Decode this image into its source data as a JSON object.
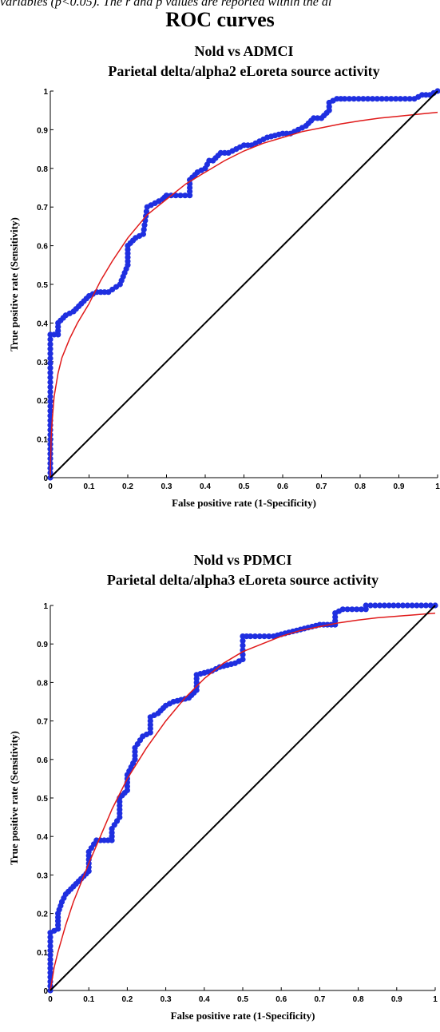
{
  "caption": "variables (p<0.05). The r and p values are reported within the di",
  "title": "ROC curves",
  "colors": {
    "empirical": "#1f2fe0",
    "fitted": "#e01a1a",
    "diagonal": "#000000",
    "axis": "#000000"
  },
  "chart_data": [
    {
      "type": "line",
      "title": "Nold vs ADMCI",
      "subtitle": "Parietal delta/alpha2 eLoreta source activity",
      "xlabel": "False positive rate (1-Specificity)",
      "ylabel": "True positive rate (Sensitivity)",
      "xlim": [
        0,
        1
      ],
      "ylim": [
        0,
        1
      ],
      "xticks": [
        "0",
        "0.1",
        "0.2",
        "0.3",
        "0.4",
        "0.5",
        "0.6",
        "0.7",
        "0.8",
        "0.9",
        "1"
      ],
      "yticks": [
        "0",
        "0.1",
        "0.2",
        "0.3",
        "0.4",
        "0.5",
        "0.6",
        "0.7",
        "0.8",
        "0.9",
        "1"
      ],
      "grid": false,
      "series": [
        {
          "kind": "empirical",
          "x": [
            0,
            0,
            0.02,
            0.02,
            0.04,
            0.06,
            0.08,
            0.1,
            0.12,
            0.15,
            0.18,
            0.2,
            0.2,
            0.22,
            0.24,
            0.25,
            0.27,
            0.29,
            0.3,
            0.36,
            0.36,
            0.38,
            0.4,
            0.41,
            0.42,
            0.44,
            0.46,
            0.5,
            0.52,
            0.56,
            0.6,
            0.62,
            0.66,
            0.68,
            0.7,
            0.72,
            0.72,
            0.74,
            0.76,
            0.94,
            0.96,
            0.98,
            1.0
          ],
          "y": [
            0,
            0.37,
            0.37,
            0.4,
            0.42,
            0.43,
            0.45,
            0.47,
            0.48,
            0.48,
            0.5,
            0.55,
            0.6,
            0.62,
            0.63,
            0.7,
            0.71,
            0.72,
            0.73,
            0.73,
            0.77,
            0.79,
            0.8,
            0.82,
            0.82,
            0.84,
            0.84,
            0.86,
            0.86,
            0.88,
            0.89,
            0.89,
            0.91,
            0.93,
            0.93,
            0.95,
            0.97,
            0.98,
            0.98,
            0.98,
            0.99,
            0.99,
            1.0
          ]
        },
        {
          "kind": "fitted",
          "x": [
            0,
            0.002,
            0.005,
            0.01,
            0.02,
            0.03,
            0.05,
            0.07,
            0.1,
            0.13,
            0.16,
            0.2,
            0.25,
            0.3,
            0.35,
            0.4,
            0.45,
            0.5,
            0.55,
            0.6,
            0.65,
            0.7,
            0.75,
            0.8,
            0.85,
            0.9,
            0.95,
            1.0
          ],
          "y": [
            0,
            0.1,
            0.15,
            0.21,
            0.27,
            0.31,
            0.36,
            0.4,
            0.45,
            0.51,
            0.56,
            0.62,
            0.68,
            0.72,
            0.76,
            0.79,
            0.82,
            0.845,
            0.865,
            0.88,
            0.895,
            0.905,
            0.915,
            0.923,
            0.93,
            0.935,
            0.94,
            0.945
          ]
        },
        {
          "kind": "diagonal",
          "x": [
            0,
            1
          ],
          "y": [
            0,
            1
          ]
        }
      ]
    },
    {
      "type": "line",
      "title": "Nold vs PDMCI",
      "subtitle": "Parietal delta/alpha3 eLoreta source activity",
      "xlabel": "False positive rate (1-Specificity)",
      "ylabel": "True positive rate (Sensitivity)",
      "xlim": [
        0,
        1
      ],
      "ylim": [
        0,
        1
      ],
      "xticks": [
        "0",
        "0.1",
        "0.2",
        "0.3",
        "0.4",
        "0.5",
        "0.6",
        "0.7",
        "0.8",
        "0.9",
        "1"
      ],
      "yticks": [
        "0",
        "0.1",
        "0.2",
        "0.3",
        "0.4",
        "0.5",
        "0.6",
        "0.7",
        "0.8",
        "0.9",
        "1"
      ],
      "grid": false,
      "series": [
        {
          "kind": "empirical",
          "x": [
            0,
            0,
            0.02,
            0.02,
            0.03,
            0.04,
            0.06,
            0.08,
            0.1,
            0.1,
            0.12,
            0.16,
            0.16,
            0.18,
            0.18,
            0.2,
            0.2,
            0.22,
            0.22,
            0.24,
            0.26,
            0.26,
            0.28,
            0.3,
            0.32,
            0.36,
            0.38,
            0.38,
            0.42,
            0.44,
            0.48,
            0.5,
            0.5,
            0.52,
            0.58,
            0.62,
            0.66,
            0.7,
            0.74,
            0.74,
            0.76,
            0.82,
            0.82,
            1.0
          ],
          "y": [
            0,
            0.15,
            0.16,
            0.2,
            0.23,
            0.25,
            0.27,
            0.29,
            0.31,
            0.36,
            0.39,
            0.39,
            0.42,
            0.45,
            0.5,
            0.52,
            0.56,
            0.6,
            0.63,
            0.66,
            0.67,
            0.71,
            0.72,
            0.74,
            0.75,
            0.76,
            0.78,
            0.82,
            0.83,
            0.84,
            0.85,
            0.86,
            0.92,
            0.92,
            0.92,
            0.93,
            0.94,
            0.95,
            0.95,
            0.98,
            0.99,
            0.99,
            1.0,
            1.0
          ]
        },
        {
          "kind": "fitted",
          "x": [
            0,
            0.01,
            0.02,
            0.04,
            0.06,
            0.08,
            0.1,
            0.13,
            0.16,
            0.2,
            0.25,
            0.3,
            0.35,
            0.4,
            0.45,
            0.5,
            0.55,
            0.6,
            0.65,
            0.7,
            0.75,
            0.8,
            0.85,
            0.9,
            0.95,
            1.0
          ],
          "y": [
            0,
            0.06,
            0.1,
            0.17,
            0.23,
            0.28,
            0.33,
            0.4,
            0.47,
            0.55,
            0.63,
            0.7,
            0.76,
            0.81,
            0.85,
            0.88,
            0.9,
            0.92,
            0.935,
            0.945,
            0.955,
            0.962,
            0.968,
            0.972,
            0.976,
            0.98
          ]
        },
        {
          "kind": "diagonal",
          "x": [
            0,
            1
          ],
          "y": [
            0,
            1
          ]
        }
      ]
    }
  ]
}
